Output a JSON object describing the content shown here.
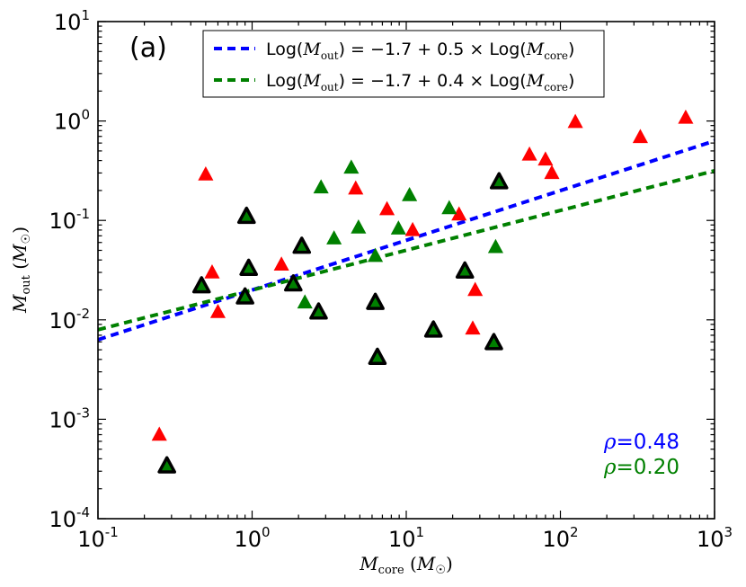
{
  "chart_data": {
    "type": "scatter",
    "panel_label": "(a)",
    "xscale": "log",
    "yscale": "log",
    "xlim": [
      0.1,
      1000
    ],
    "ylim": [
      0.0001,
      10
    ],
    "xlabel": {
      "main": "M",
      "sub": "core",
      "paren_open": " (",
      "unit": "M",
      "unit_sub": "☉",
      "paren_close": ")"
    },
    "ylabel": {
      "main": "M",
      "sub": "out",
      "paren_open": " (",
      "unit": "M",
      "unit_sub": "☉",
      "paren_close": ")"
    },
    "x_ticks": [
      {
        "value": 0.1,
        "base": "10",
        "exp": "-1"
      },
      {
        "value": 1,
        "base": "10",
        "exp": "0"
      },
      {
        "value": 10,
        "base": "10",
        "exp": "1"
      },
      {
        "value": 100,
        "base": "10",
        "exp": "2"
      },
      {
        "value": 1000,
        "base": "10",
        "exp": "3"
      }
    ],
    "y_ticks": [
      {
        "value": 0.0001,
        "base": "10",
        "exp": "-4"
      },
      {
        "value": 0.001,
        "base": "10",
        "exp": "-3"
      },
      {
        "value": 0.01,
        "base": "10",
        "exp": "-2"
      },
      {
        "value": 0.1,
        "base": "10",
        "exp": "-1"
      },
      {
        "value": 1,
        "base": "10",
        "exp": "0"
      },
      {
        "value": 10,
        "base": "10",
        "exp": "1"
      }
    ],
    "fit_lines": [
      {
        "name": "fit-line-blue",
        "color": "#0000ff",
        "intercept": -1.7,
        "slope": 0.5,
        "legend": {
          "pre": "Log(",
          "var": "M",
          "var_sub": "out",
          "mid": ") = −1.7 + 0.5 × Log(",
          "var2": "M",
          "var2_sub": "core",
          "post": ")"
        }
      },
      {
        "name": "fit-line-green",
        "color": "#008000",
        "intercept": -1.7,
        "slope": 0.4,
        "legend": {
          "pre": "Log(",
          "var": "M",
          "var_sub": "out",
          "mid": ") = −1.7 + 0.4 × Log(",
          "var2": "M",
          "var2_sub": "core",
          "post": ")"
        }
      }
    ],
    "correlations": [
      {
        "symbol": "ρ",
        "text": "=0.48",
        "color": "#0000ff"
      },
      {
        "symbol": "ρ",
        "text": "=0.20",
        "color": "#008000"
      }
    ],
    "series": [
      {
        "name": "red",
        "color": "#ff0000",
        "outlined": false,
        "points": [
          [
            0.25,
            0.0007
          ],
          [
            0.5,
            0.29
          ],
          [
            0.55,
            0.03
          ],
          [
            0.6,
            0.012
          ],
          [
            1.55,
            0.036
          ],
          [
            4.7,
            0.21
          ],
          [
            7.5,
            0.13
          ],
          [
            11,
            0.08
          ],
          [
            22,
            0.115
          ],
          [
            27,
            0.0082
          ],
          [
            28,
            0.02
          ],
          [
            63,
            0.46
          ],
          [
            80,
            0.41
          ],
          [
            88,
            0.3
          ],
          [
            125,
            0.98
          ],
          [
            330,
            0.69
          ],
          [
            650,
            1.08
          ]
        ]
      },
      {
        "name": "green",
        "color": "#008000",
        "outlined": false,
        "points": [
          [
            2.2,
            0.015
          ],
          [
            2.8,
            0.215
          ],
          [
            3.4,
            0.066
          ],
          [
            4.4,
            0.34
          ],
          [
            4.9,
            0.085
          ],
          [
            6.3,
            0.044
          ],
          [
            8.9,
            0.083
          ],
          [
            10.5,
            0.18
          ],
          [
            19,
            0.133
          ],
          [
            38,
            0.054
          ]
        ]
      },
      {
        "name": "green-outlined",
        "color": "#008000",
        "outlined": true,
        "points": [
          [
            0.28,
            0.00034
          ],
          [
            0.47,
            0.022
          ],
          [
            0.9,
            0.017
          ],
          [
            0.92,
            0.11
          ],
          [
            0.95,
            0.033
          ],
          [
            1.85,
            0.023
          ],
          [
            2.1,
            0.055
          ],
          [
            2.7,
            0.012
          ],
          [
            6.3,
            0.015
          ],
          [
            6.5,
            0.0042
          ],
          [
            15,
            0.0079
          ],
          [
            24,
            0.031
          ],
          [
            37,
            0.0059
          ],
          [
            40,
            0.245
          ]
        ]
      }
    ]
  }
}
